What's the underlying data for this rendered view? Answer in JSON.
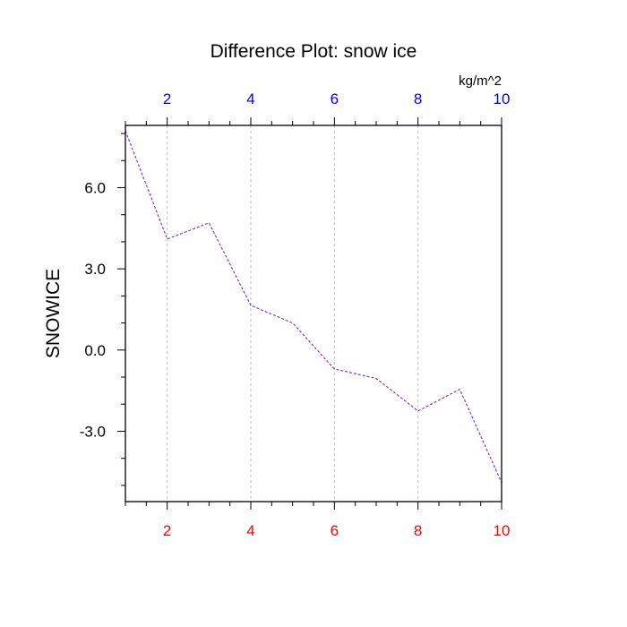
{
  "chart_data": {
    "type": "line",
    "title": "Difference Plot: snow ice",
    "units": "kg/m^2",
    "ylabel": "SNOWICE",
    "xlabel": "",
    "xlim": [
      1,
      10
    ],
    "ylim": [
      -5.6,
      8.3
    ],
    "x_ticks": [
      2,
      4,
      6,
      8,
      10
    ],
    "x_tick_labels": [
      "2",
      "4",
      "6",
      "8",
      "10"
    ],
    "y_ticks": [
      -3,
      0,
      3,
      6
    ],
    "y_tick_labels": [
      "-3.0",
      "0.0",
      "3.0",
      "6.0"
    ],
    "grid": "vertical dashed at major x ticks",
    "series": [
      {
        "x": [
          1,
          2,
          3,
          4,
          5,
          6,
          7,
          8,
          9,
          10
        ],
        "values": [
          8.1,
          4.1,
          4.7,
          1.65,
          1.0,
          -0.7,
          -1.05,
          -2.25,
          -1.45,
          -4.9
        ],
        "color": "#7a2fb0",
        "style": "dashed"
      }
    ],
    "colors": {
      "bottom_tick_labels": "#ff0000",
      "top_tick_labels": "#0000ff",
      "axes": "#000000",
      "grid": "#bfbfbf"
    }
  }
}
